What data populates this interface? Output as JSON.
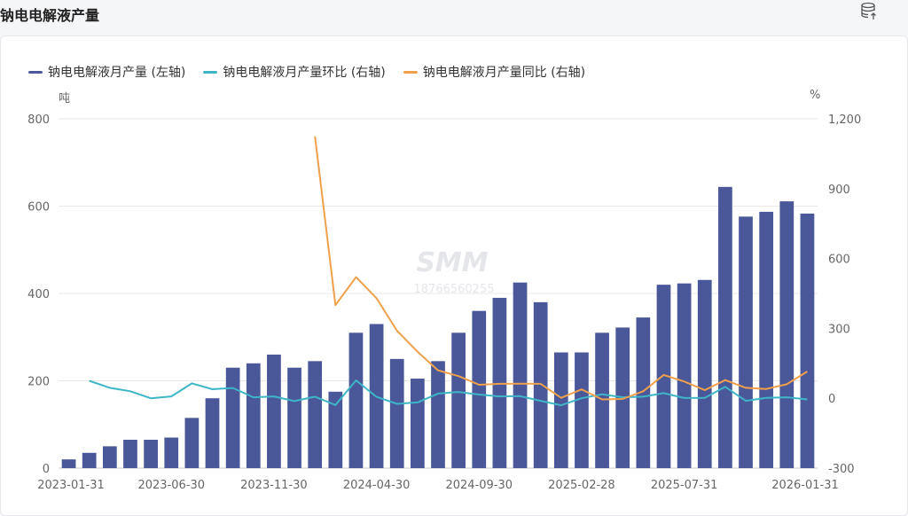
{
  "page": {
    "title": "钠电电解液产量"
  },
  "toolbar": {
    "export_icon": "database-export-icon"
  },
  "colors": {
    "bar": "#4a5899",
    "mom": "#3fb6c8",
    "yoy": "#f0a04b",
    "grid": "#e8e8e8",
    "axis_text": "#666666"
  },
  "watermark": {
    "logo": "SMM",
    "phone": "18766560255"
  },
  "chart_data": {
    "type": "bar",
    "y_unit_left": "吨",
    "y_unit_right": "%",
    "ylim_left": [
      0,
      800
    ],
    "ylim_right": [
      -300,
      1200
    ],
    "yticks_left": [
      "0",
      "200",
      "400",
      "600",
      "800"
    ],
    "yticks_right": [
      "-300",
      "0",
      "300",
      "600",
      "900",
      "1,200"
    ],
    "xtick_labels": [
      "2023-01-31",
      "2023-06-30",
      "2023-11-30",
      "2024-04-30",
      "2024-09-30",
      "2025-02-28",
      "2025-07-31",
      "2026-01-31"
    ],
    "xtick_indices": [
      0,
      5,
      10,
      15,
      20,
      25,
      30,
      36
    ],
    "legend_position": "top-left",
    "grid": true,
    "series": [
      {
        "name": "钠电电解液月产量 (左轴)",
        "type": "bar",
        "axis": "left",
        "values": [
          20,
          35,
          50,
          65,
          65,
          70,
          115,
          160,
          230,
          240,
          260,
          230,
          245,
          175,
          310,
          330,
          250,
          205,
          245,
          310,
          360,
          390,
          425,
          380,
          265,
          265,
          310,
          322,
          345,
          420,
          423,
          431,
          644,
          576,
          587,
          611,
          583
        ]
      },
      {
        "name": "钠电电解液月产量环比 (右轴)",
        "type": "line",
        "axis": "right",
        "values": [
          null,
          75,
          45,
          30,
          0,
          8,
          64,
          39,
          44,
          4,
          8,
          -12,
          7,
          -29,
          77,
          6,
          -24,
          -18,
          20,
          27,
          16,
          8,
          9,
          -11,
          -30,
          0,
          17,
          4,
          7,
          22,
          1,
          2,
          49,
          -11,
          2,
          4,
          -5
        ]
      },
      {
        "name": "钠电电解液月产量同比 (右轴)",
        "type": "line",
        "axis": "right",
        "values": [
          null,
          null,
          null,
          null,
          null,
          null,
          null,
          null,
          null,
          null,
          null,
          null,
          1125,
          400,
          520,
          430,
          290,
          200,
          120,
          95,
          58,
          62,
          63,
          62,
          2,
          38,
          -5,
          -3,
          30,
          100,
          72,
          35,
          78,
          45,
          40,
          60,
          115
        ]
      }
    ]
  }
}
